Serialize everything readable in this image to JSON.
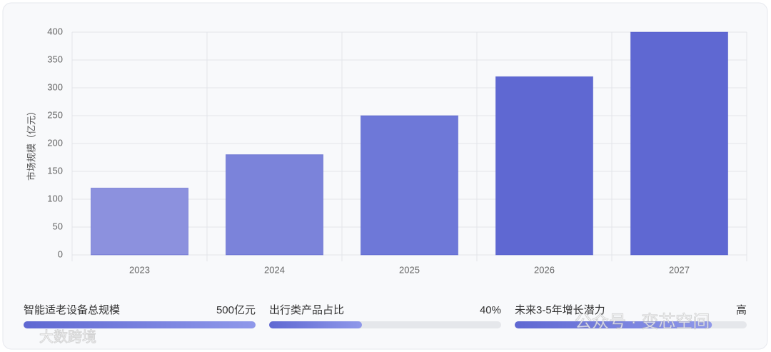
{
  "chart_data": {
    "type": "bar",
    "y_label": "市场规模（亿元）",
    "categories": [
      "2023",
      "2024",
      "2025",
      "2026",
      "2027"
    ],
    "values": [
      120,
      180,
      250,
      320,
      400
    ],
    "colors": [
      "#8c91de",
      "#7b83da",
      "#6e78d8",
      "#5f68d2",
      "#5f68d2"
    ],
    "ylim": [
      0,
      400
    ],
    "yticks": [
      0,
      50,
      100,
      150,
      200,
      250,
      300,
      350,
      400
    ],
    "grid": true
  },
  "stats": [
    {
      "label": "智能适老设备总规模",
      "value": "500亿元",
      "progress": 100
    },
    {
      "label": "出行类产品占比",
      "value": "40%",
      "progress": 40
    },
    {
      "label": "未来3-5年增长潜力",
      "value": "高",
      "progress": 85
    }
  ],
  "watermarks": [
    "公众号 · 变芯空间",
    "大数跨境"
  ]
}
